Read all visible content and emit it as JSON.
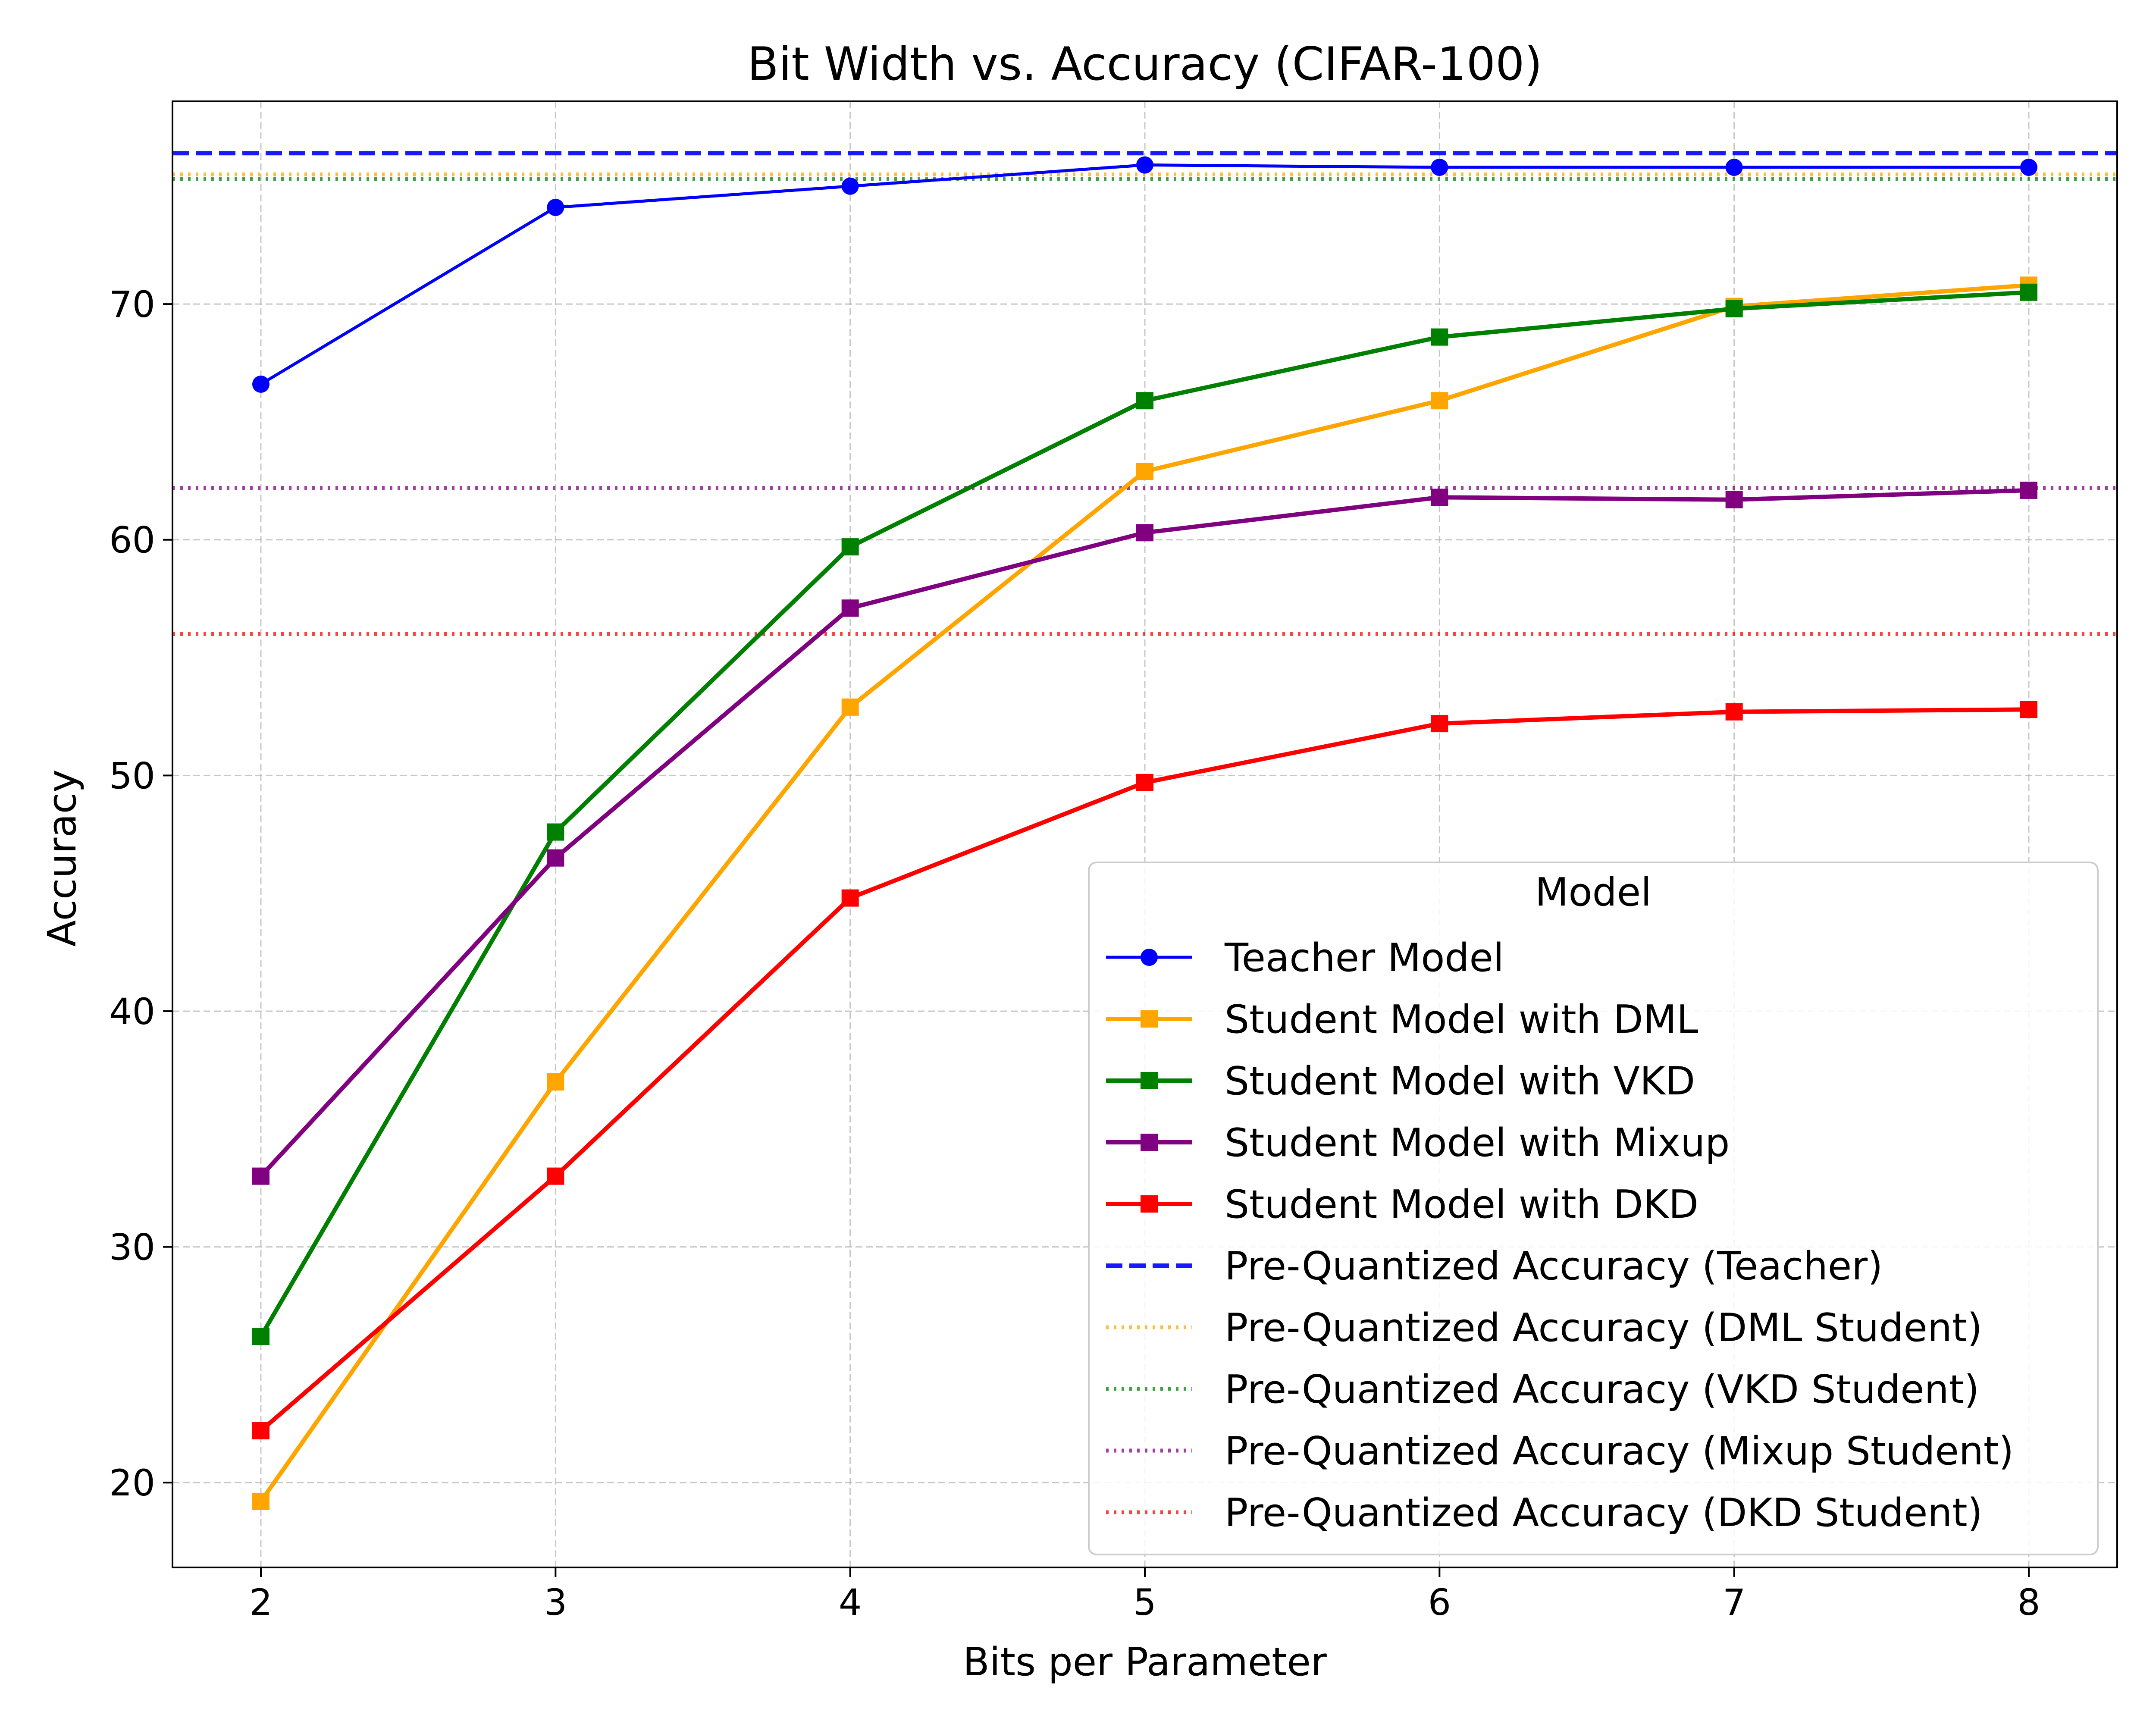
{
  "chart_data": {
    "type": "line",
    "title": "Bit Width vs. Accuracy (CIFAR-100)",
    "xlabel": "Bits per Parameter",
    "ylabel": "Accuracy",
    "x": [
      2,
      3,
      4,
      5,
      6,
      7,
      8
    ],
    "xlim": [
      1.7,
      8.3
    ],
    "ylim": [
      16.4,
      78.6
    ],
    "xticks": [
      2,
      3,
      4,
      5,
      6,
      7,
      8
    ],
    "yticks": [
      20,
      30,
      40,
      50,
      60,
      70
    ],
    "grid": true,
    "legend": {
      "title": "Model",
      "placement": "lower-right"
    },
    "series": [
      {
        "name": "Teacher Model",
        "color": "#0000ff",
        "marker": "circle",
        "style": "solid",
        "values": [
          66.6,
          74.1,
          75.0,
          75.9,
          75.8,
          75.8,
          75.8
        ]
      },
      {
        "name": "Student Model with DML",
        "color": "#ffa500",
        "marker": "square",
        "style": "solid",
        "values": [
          19.2,
          37.0,
          52.9,
          62.9,
          65.9,
          69.9,
          70.8
        ]
      },
      {
        "name": "Student Model with VKD",
        "color": "#008000",
        "marker": "square",
        "style": "solid",
        "values": [
          26.2,
          47.6,
          59.7,
          65.9,
          68.6,
          69.8,
          70.5
        ]
      },
      {
        "name": "Student Model with Mixup",
        "color": "#800080",
        "marker": "square",
        "style": "solid",
        "values": [
          33.0,
          46.5,
          57.1,
          60.3,
          61.8,
          61.7,
          62.1
        ]
      },
      {
        "name": "Student Model with DKD",
        "color": "#ff0000",
        "marker": "square",
        "style": "solid",
        "values": [
          22.2,
          33.0,
          44.8,
          49.7,
          52.2,
          52.7,
          52.8
        ]
      }
    ],
    "reference_lines": [
      {
        "name": "Pre-Quantized Accuracy (Teacher)",
        "color": "#0000ff",
        "style": "dashed",
        "value": 76.4
      },
      {
        "name": "Pre-Quantized Accuracy (DML Student)",
        "color": "#ffa500",
        "style": "dotted",
        "value": 75.5
      },
      {
        "name": "Pre-Quantized Accuracy (VKD Student)",
        "color": "#008000",
        "style": "dotted",
        "value": 75.3
      },
      {
        "name": "Pre-Quantized Accuracy (Mixup Student)",
        "color": "#800080",
        "style": "dotted",
        "value": 62.2
      },
      {
        "name": "Pre-Quantized Accuracy (DKD Student)",
        "color": "#ff0000",
        "style": "dotted",
        "value": 56.0
      }
    ]
  }
}
